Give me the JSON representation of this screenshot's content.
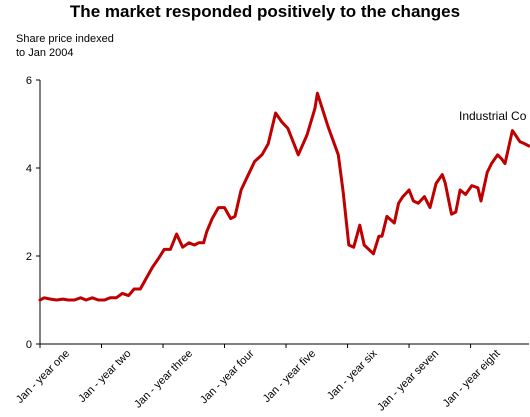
{
  "chart_data": {
    "type": "line",
    "title": "The market responded positively to the changes",
    "ylabel": "Share price indexed to Jan 2004",
    "ylabel_lines": [
      "Share price indexed",
      "to Jan 2004"
    ],
    "xlabel": "",
    "ylim": [
      0,
      6
    ],
    "yticks": [
      0,
      2,
      4,
      6
    ],
    "grid": false,
    "x_tick_labels": [
      "Jan - year one",
      "Jan - year two",
      "Jan - year three",
      "Jan - year four",
      "Jan - year five",
      "Jan - year six",
      "Jan - year seven",
      "Jan - year eight"
    ],
    "series": [
      {
        "name": "Industrial Co",
        "color": "#c00000",
        "x": [
          0,
          0.07,
          0.17,
          0.27,
          0.37,
          0.46,
          0.56,
          0.66,
          0.75,
          0.85,
          0.95,
          1.05,
          1.14,
          1.24,
          1.34,
          1.44,
          1.53,
          1.63,
          1.73,
          1.83,
          1.93,
          2.02,
          2.12,
          2.22,
          2.32,
          2.42,
          2.51,
          2.58,
          2.66,
          2.71,
          2.8,
          2.9,
          3.0,
          3.1,
          3.17,
          3.27,
          3.37,
          3.49,
          3.61,
          3.71,
          3.83,
          3.93,
          4.03,
          4.2,
          4.34,
          4.47,
          4.51,
          4.68,
          4.85,
          4.93,
          5.02,
          5.1,
          5.2,
          5.27,
          5.42,
          5.51,
          5.56,
          5.64,
          5.76,
          5.83,
          5.9,
          6.0,
          6.07,
          6.15,
          6.25,
          6.34,
          6.44,
          6.54,
          6.59,
          6.69,
          6.76,
          6.83,
          6.92,
          7.02,
          7.12,
          7.17,
          7.27,
          7.34,
          7.44,
          7.51,
          7.56,
          7.68,
          7.73,
          7.8,
          7.88,
          7.95
        ],
        "y": [
          1.0,
          1.05,
          1.02,
          1.0,
          1.02,
          1.0,
          1.0,
          1.05,
          1.0,
          1.05,
          1.0,
          1.0,
          1.05,
          1.05,
          1.15,
          1.1,
          1.25,
          1.25,
          1.5,
          1.75,
          1.95,
          2.15,
          2.15,
          2.5,
          2.2,
          2.3,
          2.25,
          2.3,
          2.3,
          2.55,
          2.85,
          3.1,
          3.1,
          2.85,
          2.9,
          3.5,
          3.8,
          4.15,
          4.3,
          4.55,
          5.25,
          5.05,
          4.9,
          4.3,
          4.75,
          5.35,
          5.7,
          4.95,
          4.3,
          3.45,
          2.25,
          2.2,
          2.7,
          2.25,
          2.05,
          2.45,
          2.45,
          2.9,
          2.75,
          3.2,
          3.35,
          3.5,
          3.25,
          3.2,
          3.35,
          3.1,
          3.65,
          3.85,
          3.65,
          2.95,
          3.0,
          3.5,
          3.4,
          3.6,
          3.55,
          3.25,
          3.9,
          4.1,
          4.3,
          4.2,
          4.1,
          4.85,
          4.75,
          4.6,
          4.55,
          4.5
        ]
      }
    ]
  }
}
